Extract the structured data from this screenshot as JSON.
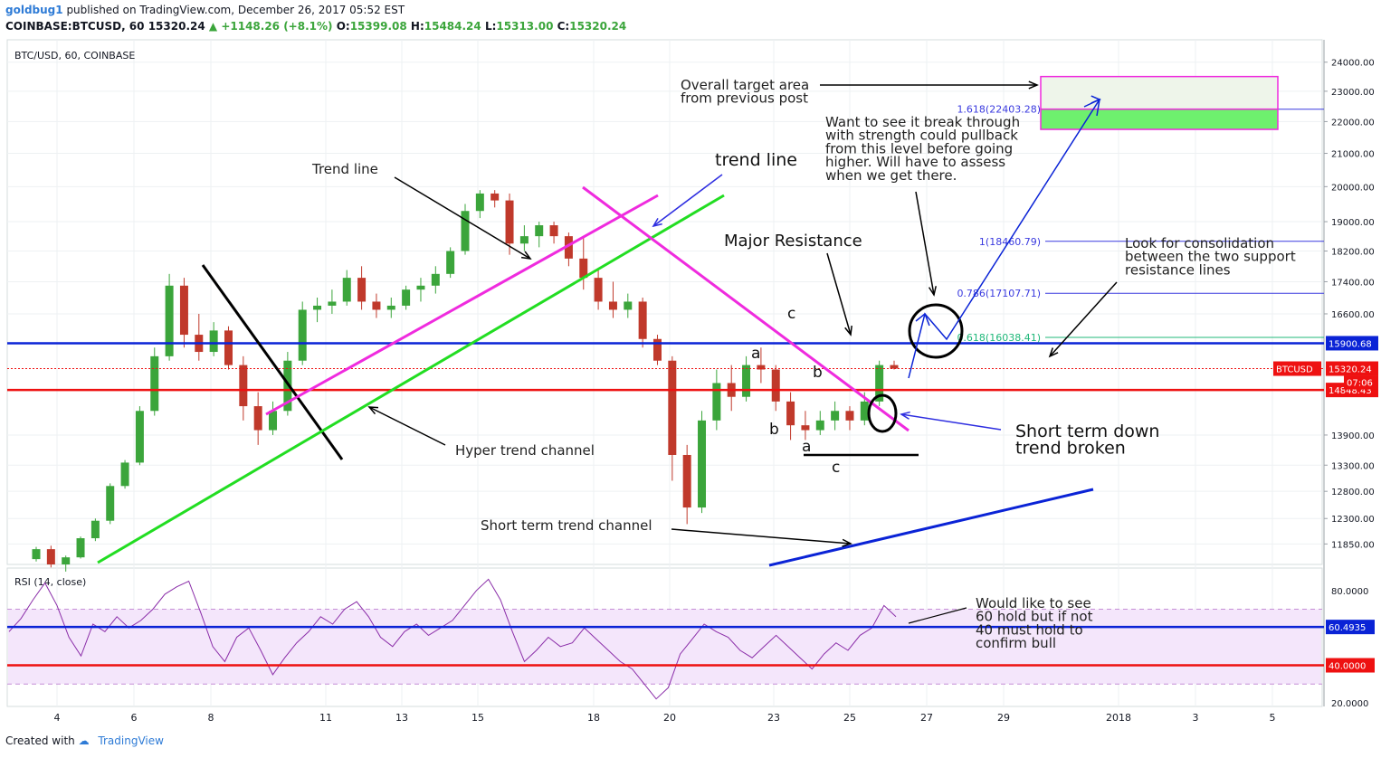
{
  "header": {
    "user": "goldbug1",
    "published": "published on TradingView.com, December 26, 2017 05:52 EST",
    "symbol": "COINBASE:BTCUSD, 60",
    "last": "15320.24",
    "change": "▲ +1148.26 (+8.1%)",
    "o_label": "O:",
    "o": "15399.08",
    "h_label": "H:",
    "h": "15484.24",
    "l_label": "L:",
    "l": "15313.00",
    "c_label": "C:",
    "c": "15320.24"
  },
  "footer": {
    "created_with": "Created with",
    "brand": "TradingView"
  },
  "colors": {
    "up": "#3ba53b",
    "down": "#c0392b",
    "blue_line": "#0a23d6",
    "red_line": "#ee1111",
    "magenta": "#ef2bde",
    "green": "#22dd22",
    "rsi_fill": "#f4e6fb",
    "rsi_line": "#8a2da8"
  },
  "chart_data": [
    {
      "type": "candlestick",
      "title": "BTC/USD, 60, COINBASE",
      "xlabel": "",
      "ylabel": "",
      "x_ticks": [
        "4",
        "6",
        "8",
        "11",
        "13",
        "15",
        "18",
        "20",
        "23",
        "25",
        "27",
        "29",
        "2018",
        "3",
        "5"
      ],
      "y_ticks": [
        "24000.00",
        "23000.00",
        "22000.00",
        "21000.00",
        "20000.00",
        "19000.00",
        "18200.00",
        "17400.00",
        "16600.00",
        "15900.68",
        "15320.24",
        "14848.43",
        "13900.00",
        "13300.00",
        "12800.00",
        "12300.00",
        "11850.00"
      ],
      "y_scale": "log",
      "ylim": [
        11500,
        24800
      ],
      "series": [
        {
          "values": [
            [
              11590,
              11800,
              11550,
              11760
            ],
            [
              11760,
              11820,
              11450,
              11500
            ],
            [
              11500,
              11650,
              11380,
              11620
            ],
            [
              11620,
              11980,
              11600,
              11950
            ],
            [
              11950,
              12300,
              11900,
              12260
            ],
            [
              12260,
              12950,
              12200,
              12900
            ],
            [
              12900,
              13400,
              12850,
              13350
            ],
            [
              13350,
              14500,
              13300,
              14400
            ],
            [
              14400,
              15800,
              14300,
              15600
            ],
            [
              15600,
              17600,
              15500,
              17300
            ],
            [
              17300,
              17500,
              15800,
              16100
            ],
            [
              16100,
              16600,
              15500,
              15700
            ],
            [
              15700,
              16400,
              15600,
              16200
            ],
            [
              16200,
              16300,
              15300,
              15400
            ],
            [
              15400,
              15600,
              14200,
              14500
            ],
            [
              14500,
              14800,
              13700,
              14000
            ],
            [
              14000,
              14600,
              13900,
              14400
            ],
            [
              14400,
              15700,
              14300,
              15500
            ],
            [
              15500,
              16900,
              15400,
              16700
            ],
            [
              16700,
              17000,
              16400,
              16800
            ],
            [
              16800,
              17200,
              16600,
              16900
            ],
            [
              16900,
              17700,
              16800,
              17500
            ],
            [
              17500,
              17800,
              16700,
              16900
            ],
            [
              16900,
              17100,
              16500,
              16700
            ],
            [
              16700,
              17000,
              16500,
              16800
            ],
            [
              16800,
              17300,
              16700,
              17200
            ],
            [
              17200,
              17500,
              16900,
              17300
            ],
            [
              17300,
              17800,
              17100,
              17600
            ],
            [
              17600,
              18300,
              17500,
              18200
            ],
            [
              18200,
              19500,
              18100,
              19300
            ],
            [
              19300,
              19900,
              19100,
              19800
            ],
            [
              19800,
              19900,
              19400,
              19600
            ],
            [
              19600,
              19800,
              18100,
              18400
            ],
            [
              18400,
              18900,
              18200,
              18600
            ],
            [
              18600,
              19000,
              18300,
              18900
            ],
            [
              18900,
              19000,
              18400,
              18600
            ],
            [
              18600,
              18700,
              17800,
              18000
            ],
            [
              18000,
              18600,
              17200,
              17500
            ],
            [
              17500,
              17700,
              16700,
              16900
            ],
            [
              16900,
              17400,
              16500,
              16700
            ],
            [
              16700,
              17100,
              16500,
              16900
            ],
            [
              16900,
              17000,
              15800,
              16000
            ],
            [
              16000,
              16100,
              15400,
              15500
            ],
            [
              15500,
              15600,
              13000,
              13500
            ],
            [
              13500,
              13700,
              12200,
              12500
            ],
            [
              12500,
              14400,
              12400,
              14200
            ],
            [
              14200,
              15300,
              14000,
              15000
            ],
            [
              15000,
              15400,
              14400,
              14700
            ],
            [
              14700,
              15600,
              14600,
              15400
            ],
            [
              15400,
              15800,
              15000,
              15300
            ],
            [
              15300,
              15400,
              14400,
              14600
            ],
            [
              14600,
              14800,
              13800,
              14100
            ],
            [
              14100,
              14400,
              13800,
              14000
            ],
            [
              14000,
              14400,
              13900,
              14200
            ],
            [
              14200,
              14600,
              14000,
              14400
            ],
            [
              14400,
              14500,
              14000,
              14200
            ],
            [
              14200,
              14800,
              14100,
              14600
            ],
            [
              14600,
              15500,
              14500,
              15400
            ],
            [
              15400,
              15500,
              15300,
              15320
            ]
          ]
        }
      ],
      "horizontal_lines": [
        {
          "value": 15900.68,
          "label": "15900.68",
          "color": "#0a23d6"
        },
        {
          "value": 14848.43,
          "label": "14848.43",
          "color": "#ee1111"
        },
        {
          "value": 15320.24,
          "label": "BTCUSD",
          "value_label": "15320.24",
          "color": "#ee1111"
        }
      ],
      "fib_levels": [
        {
          "label": "1.618(22403.28)",
          "value": 22403.28
        },
        {
          "label": "1(18460.79)",
          "value": 18460.79
        },
        {
          "label": "0.786(17107.71)",
          "value": 17107.71
        },
        {
          "label": "0.618(16038.41)",
          "value": 16038.41
        }
      ],
      "countdown": "07:06",
      "target_area": {
        "top": 23500,
        "bottom": 21750,
        "inner_top": 22403.28
      },
      "annotations": [
        "Overall target area\nfrom previous post",
        "Want to see it break through\nwith strength could pullback\nfrom this level before going\nhigher. Will have to assess\nwhen we get there.",
        "Trend line",
        "trend line",
        "Major Resistance",
        "Look for consolidation\nbetween the two support\nresistance lines",
        "Hyper trend channel",
        "Short term down\ntrend broken",
        "Short term trend channel",
        "a",
        "b",
        "c",
        "a",
        "b",
        "c"
      ]
    },
    {
      "type": "line",
      "title": "RSI (14, close)",
      "y_ticks": [
        "80.0000",
        "60.4935",
        "40.0000",
        "20.0000"
      ],
      "ylim": [
        18,
        92
      ],
      "band": [
        30,
        70
      ],
      "levels": [
        {
          "value": 60.4935,
          "label": "60.4935",
          "color": "#0a23d6"
        },
        {
          "value": 40.0,
          "label": "40.0000",
          "color": "#ee1111"
        }
      ],
      "series": [
        {
          "name": "RSI",
          "values": [
            58,
            65,
            75,
            84,
            72,
            55,
            45,
            62,
            58,
            66,
            60,
            64,
            70,
            78,
            82,
            85,
            68,
            50,
            42,
            55,
            60,
            48,
            35,
            44,
            52,
            58,
            66,
            62,
            70,
            74,
            66,
            55,
            50,
            58,
            62,
            56,
            60,
            64,
            72,
            80,
            86,
            75,
            58,
            42,
            48,
            55,
            50,
            52,
            60,
            54,
            48,
            42,
            38,
            30,
            22,
            28,
            46,
            54,
            62,
            58,
            55,
            48,
            44,
            50,
            56,
            50,
            44,
            38,
            46,
            52,
            48,
            56,
            60,
            72,
            66
          ]
        }
      ],
      "annotation": "Would like to see\n60 hold but if not\n40 must hold to\nconfirm bull"
    }
  ]
}
